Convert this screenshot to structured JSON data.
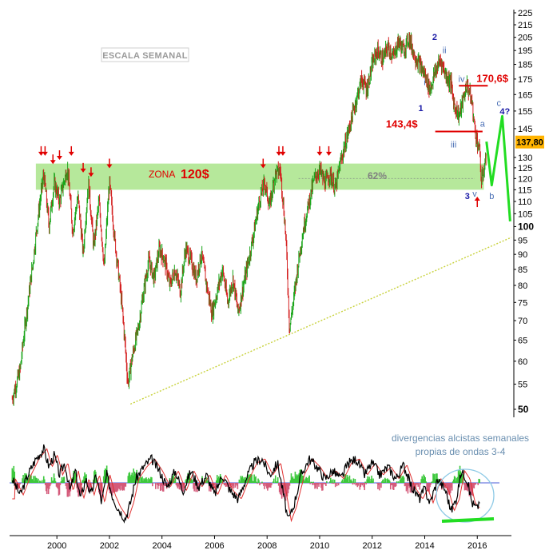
{
  "chart_data": {
    "type": "candlestick",
    "title": "ESCALA SEMANAL",
    "scale": "log",
    "y_ticks": [
      50,
      55,
      60,
      65,
      70,
      75,
      80,
      85,
      90,
      95,
      100,
      105,
      110,
      115,
      120,
      125,
      130,
      137.8,
      145,
      155,
      165,
      175,
      185,
      195,
      205,
      215,
      225
    ],
    "y_tick_labels": [
      "50",
      "55",
      "60",
      "65",
      "70",
      "75",
      "80",
      "85",
      "90",
      "95",
      "100",
      "105",
      "110",
      "115",
      "120",
      "125",
      "130",
      "145",
      "155",
      "165",
      "175",
      "185",
      "195",
      "205",
      "215",
      "225"
    ],
    "ylim": [
      50,
      225
    ],
    "current_price": "137,80",
    "x_tick_labels": [
      "2000",
      "2002",
      "2004",
      "2006",
      "2008",
      "2010",
      "2012",
      "2014",
      "2016"
    ],
    "x_ticks": [
      2000,
      2002,
      2004,
      2006,
      2008,
      2010,
      2012,
      2014,
      2016
    ],
    "xlim": [
      1998.2,
      2017.3
    ],
    "price_path": [
      [
        1998.3,
        52
      ],
      [
        1998.6,
        58
      ],
      [
        1998.9,
        75
      ],
      [
        1999.1,
        88
      ],
      [
        1999.3,
        105
      ],
      [
        1999.5,
        122
      ],
      [
        1999.7,
        100
      ],
      [
        1999.9,
        118
      ],
      [
        2000.1,
        110
      ],
      [
        2000.4,
        125
      ],
      [
        2000.6,
        98
      ],
      [
        2000.8,
        112
      ],
      [
        2001.0,
        90
      ],
      [
        2001.2,
        118
      ],
      [
        2001.4,
        92
      ],
      [
        2001.6,
        110
      ],
      [
        2001.8,
        85
      ],
      [
        2002.0,
        118
      ],
      [
        2002.2,
        95
      ],
      [
        2002.5,
        72
      ],
      [
        2002.7,
        55
      ],
      [
        2002.9,
        62
      ],
      [
        2003.1,
        68
      ],
      [
        2003.3,
        78
      ],
      [
        2003.5,
        88
      ],
      [
        2003.7,
        82
      ],
      [
        2003.9,
        92
      ],
      [
        2004.1,
        88
      ],
      [
        2004.3,
        80
      ],
      [
        2004.5,
        85
      ],
      [
        2004.7,
        78
      ],
      [
        2004.9,
        92
      ],
      [
        2005.1,
        88
      ],
      [
        2005.3,
        82
      ],
      [
        2005.5,
        90
      ],
      [
        2005.7,
        80
      ],
      [
        2005.9,
        72
      ],
      [
        2006.1,
        78
      ],
      [
        2006.3,
        85
      ],
      [
        2006.5,
        75
      ],
      [
        2006.7,
        82
      ],
      [
        2006.9,
        72
      ],
      [
        2007.1,
        80
      ],
      [
        2007.3,
        88
      ],
      [
        2007.5,
        98
      ],
      [
        2007.7,
        110
      ],
      [
        2007.9,
        118
      ],
      [
        2008.1,
        108
      ],
      [
        2008.3,
        122
      ],
      [
        2008.5,
        124
      ],
      [
        2008.7,
        98
      ],
      [
        2008.85,
        68
      ],
      [
        2009.0,
        75
      ],
      [
        2009.2,
        88
      ],
      [
        2009.4,
        100
      ],
      [
        2009.6,
        110
      ],
      [
        2009.8,
        120
      ],
      [
        2010.0,
        124
      ],
      [
        2010.2,
        118
      ],
      [
        2010.4,
        122
      ],
      [
        2010.6,
        115
      ],
      [
        2010.8,
        128
      ],
      [
        2011.0,
        138
      ],
      [
        2011.2,
        150
      ],
      [
        2011.4,
        162
      ],
      [
        2011.6,
        175
      ],
      [
        2011.8,
        168
      ],
      [
        2012.0,
        185
      ],
      [
        2012.2,
        195
      ],
      [
        2012.4,
        188
      ],
      [
        2012.6,
        198
      ],
      [
        2012.8,
        190
      ],
      [
        2013.0,
        202
      ],
      [
        2013.2,
        195
      ],
      [
        2013.4,
        205
      ],
      [
        2013.6,
        192
      ],
      [
        2013.8,
        185
      ],
      [
        2014.0,
        178
      ],
      [
        2014.2,
        168
      ],
      [
        2014.4,
        180
      ],
      [
        2014.6,
        188
      ],
      [
        2014.8,
        178
      ],
      [
        2015.0,
        172
      ],
      [
        2015.1,
        160
      ],
      [
        2015.3,
        152
      ],
      [
        2015.5,
        164
      ],
      [
        2015.6,
        172
      ],
      [
        2015.8,
        160
      ],
      [
        2015.9,
        145
      ],
      [
        2016.0,
        138
      ],
      [
        2016.1,
        132
      ],
      [
        2016.15,
        118
      ],
      [
        2016.25,
        124
      ],
      [
        2016.35,
        131
      ]
    ],
    "projection": [
      [
        2016.35,
        138
      ],
      [
        2016.55,
        117
      ],
      [
        2016.95,
        152
      ],
      [
        2017.25,
        102
      ]
    ],
    "zone": {
      "low": 115,
      "high": 127,
      "label_prefix": "ZONA",
      "label_value": "120$"
    },
    "fib_label": "62%",
    "levels": [
      {
        "label": "170,6$",
        "value": 170.6,
        "x_start": 2015.3,
        "x_end": 2016.4
      },
      {
        "label": "143,4$",
        "value": 143.4,
        "x_start": 2014.4,
        "x_end": 2016.2
      }
    ],
    "wave_labels": [
      {
        "text": "2",
        "x": 2014.38,
        "y": 203,
        "style": "blue"
      },
      {
        "text": "ii",
        "x": 2014.75,
        "y": 193,
        "style": "light"
      },
      {
        "text": "i",
        "x": 2014.0,
        "y": 171,
        "style": "light"
      },
      {
        "text": "1",
        "x": 2013.85,
        "y": 155,
        "style": "blue"
      },
      {
        "text": "iv",
        "x": 2015.4,
        "y": 173,
        "style": "light"
      },
      {
        "text": "iii",
        "x": 2015.1,
        "y": 135,
        "style": "light"
      },
      {
        "text": "c",
        "x": 2016.82,
        "y": 158,
        "style": "light"
      },
      {
        "text": "4?",
        "x": 2017.05,
        "y": 153,
        "style": "blue"
      },
      {
        "text": "a",
        "x": 2016.2,
        "y": 146,
        "style": "light"
      },
      {
        "text": "b",
        "x": 2016.55,
        "y": 111,
        "style": "light"
      },
      {
        "text": "v",
        "x": 2015.9,
        "y": 112,
        "style": "light"
      },
      {
        "text": "3",
        "x": 2015.62,
        "y": 111,
        "style": "blue"
      }
    ],
    "top_arrows": [
      1999.4,
      1999.55,
      1999.85,
      2000.1,
      2000.55,
      2001.0,
      2001.3,
      2002.0,
      2007.85,
      2008.45,
      2008.6,
      2010.0,
      2010.35
    ],
    "bottom_arrow": 2016.0,
    "trendline": [
      [
        2002.8,
        51
      ],
      [
        2017.3,
        96
      ]
    ],
    "indicator": {
      "note_line1": "divergencias alcistas semanales",
      "note_line2": "propias de ondas 3-4",
      "osc": [
        [
          1998.3,
          0.1
        ],
        [
          1998.6,
          -0.3
        ],
        [
          1998.9,
          0.2
        ],
        [
          1999.2,
          0.6
        ],
        [
          1999.5,
          0.85
        ],
        [
          1999.7,
          0.4
        ],
        [
          1999.9,
          0.7
        ],
        [
          2000.1,
          0.2
        ],
        [
          2000.3,
          0.5
        ],
        [
          2000.5,
          -0.2
        ],
        [
          2000.7,
          0.3
        ],
        [
          2000.9,
          -0.4
        ],
        [
          2001.1,
          0.1
        ],
        [
          2001.3,
          -0.3
        ],
        [
          2001.5,
          0.2
        ],
        [
          2001.7,
          -0.5
        ],
        [
          2001.9,
          0.2
        ],
        [
          2002.1,
          -0.3
        ],
        [
          2002.3,
          -0.6
        ],
        [
          2002.6,
          -0.9
        ],
        [
          2002.8,
          -0.5
        ],
        [
          2003.0,
          0.1
        ],
        [
          2003.3,
          0.4
        ],
        [
          2003.6,
          0.6
        ],
        [
          2003.9,
          0.3
        ],
        [
          2004.2,
          -0.1
        ],
        [
          2004.5,
          0.3
        ],
        [
          2004.8,
          -0.2
        ],
        [
          2005.1,
          0.3
        ],
        [
          2005.4,
          -0.1
        ],
        [
          2005.7,
          0.2
        ],
        [
          2006.0,
          -0.3
        ],
        [
          2006.3,
          0.2
        ],
        [
          2006.6,
          -0.2
        ],
        [
          2006.9,
          -0.4
        ],
        [
          2007.2,
          0.1
        ],
        [
          2007.5,
          0.5
        ],
        [
          2007.8,
          0.6
        ],
        [
          2008.1,
          0.2
        ],
        [
          2008.4,
          0.5
        ],
        [
          2008.6,
          -0.2
        ],
        [
          2008.8,
          -0.95
        ],
        [
          2009.0,
          -0.6
        ],
        [
          2009.3,
          0.2
        ],
        [
          2009.6,
          0.6
        ],
        [
          2009.9,
          0.4
        ],
        [
          2010.2,
          0.1
        ],
        [
          2010.5,
          0.3
        ],
        [
          2010.8,
          0.1
        ],
        [
          2011.1,
          0.5
        ],
        [
          2011.4,
          0.6
        ],
        [
          2011.7,
          0.2
        ],
        [
          2012.0,
          0.5
        ],
        [
          2012.3,
          0.2
        ],
        [
          2012.6,
          0.4
        ],
        [
          2012.9,
          0.1
        ],
        [
          2013.2,
          0.45
        ],
        [
          2013.5,
          -0.1
        ],
        [
          2013.8,
          -0.4
        ],
        [
          2014.0,
          -0.15
        ],
        [
          2014.2,
          -0.5
        ],
        [
          2014.5,
          0.1
        ],
        [
          2014.8,
          -0.2
        ],
        [
          2015.0,
          -0.7
        ],
        [
          2015.2,
          -0.4
        ],
        [
          2015.4,
          0.3
        ],
        [
          2015.6,
          0.1
        ],
        [
          2015.8,
          -0.5
        ],
        [
          2016.0,
          -0.65
        ],
        [
          2016.1,
          -0.4
        ]
      ]
    }
  }
}
